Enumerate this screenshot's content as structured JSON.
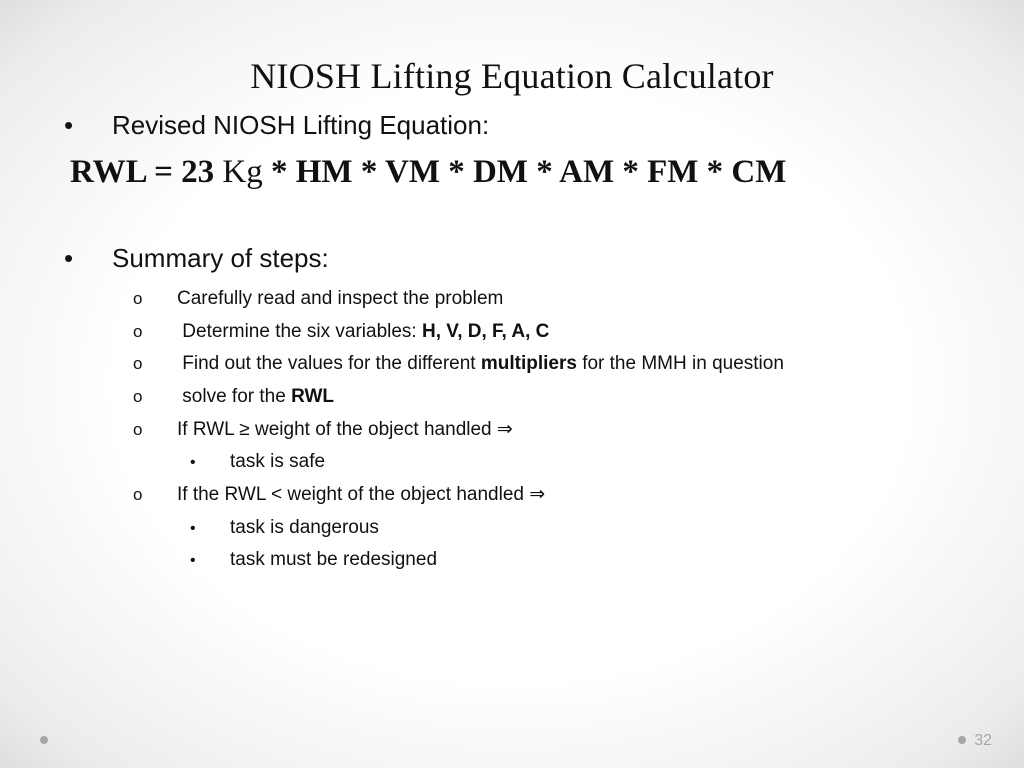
{
  "title": "NIOSH Lifting Equation Calculator",
  "intro": "Revised NIOSH Lifting Equation:",
  "equation": {
    "lead_bold": "RWL = 23",
    "unit": " Kg ",
    "tail_bold": "* HM * VM * DM * AM * FM * CM"
  },
  "summary_label": "Summary of steps:",
  "steps": {
    "s1": "Carefully read and inspect the problem",
    "s2_pre": "Determine the six variables: ",
    "s2_vars": "H, V, D, F, A, C",
    "s3_pre": "Find out the values for the different ",
    "s3_bold": "multipliers",
    "s3_post": " for the MMH in question",
    "s4_pre": "solve for the ",
    "s4_bold": "RWL",
    "s5": "If RWL ≥ weight of the object handled ⇒",
    "s5a": "task is safe",
    "s6": "If the RWL < weight of the object handled ⇒",
    "s6a": "task is dangerous",
    "s6b": "task must be redesigned"
  },
  "page_number": "32",
  "colors": {
    "text": "#111111",
    "muted": "#a6a6a6",
    "bg_center": "#ffffff",
    "bg_edge": "#dedede"
  },
  "fonts": {
    "title_family": "Palatino Linotype",
    "body_family": "Century Gothic",
    "title_size_pt": 27,
    "body_l1_size_pt": 20,
    "body_l2_size_pt": 14,
    "equation_size_pt": 25
  }
}
